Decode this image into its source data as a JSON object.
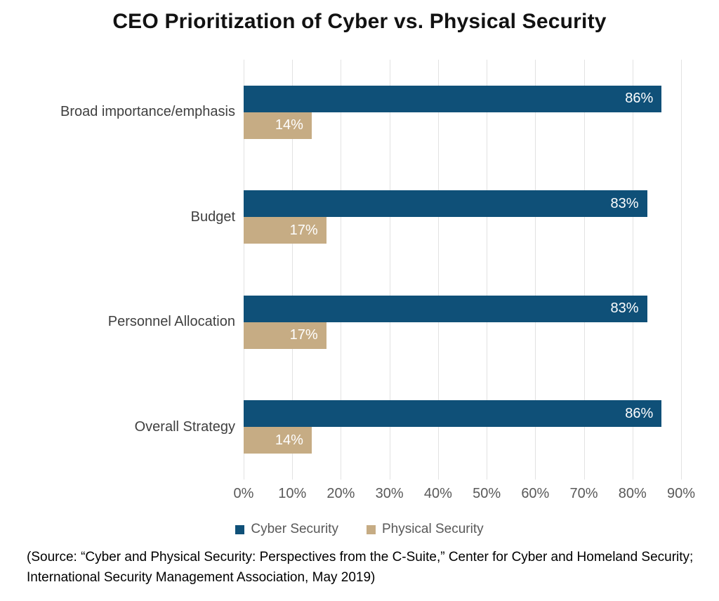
{
  "chart_data": {
    "type": "bar",
    "orientation": "horizontal",
    "title": "CEO Prioritization of Cyber vs. Physical Security",
    "categories": [
      "Broad importance/emphasis",
      "Budget",
      "Personnel Allocation",
      "Overall Strategy"
    ],
    "series": [
      {
        "name": "Cyber Security",
        "color": "#0F5078",
        "values": [
          86,
          83,
          83,
          86
        ]
      },
      {
        "name": "Physical Security",
        "color": "#C6AC84",
        "values": [
          14,
          17,
          17,
          14
        ]
      }
    ],
    "data_labels": [
      [
        "86%",
        "83%",
        "83%",
        "86%"
      ],
      [
        "14%",
        "17%",
        "17%",
        "14%"
      ]
    ],
    "xlim": [
      0,
      90
    ],
    "x_tick_values": [
      0,
      10,
      20,
      30,
      40,
      50,
      60,
      70,
      80,
      90
    ],
    "x_tick_labels": [
      "0%",
      "10%",
      "20%",
      "30%",
      "40%",
      "50%",
      "60%",
      "70%",
      "80%",
      "90%"
    ],
    "grid": true,
    "legend_position": "bottom",
    "colors": {
      "cyber_bar": "#0F5078",
      "physical_bar": "#C6AC84",
      "value_label_text": "#FFFFFF",
      "category_label_text": "#3F3F3F",
      "tick_label_text": "#595959",
      "legend_text": "#595959",
      "gridline": "#E2E2E2",
      "title_text": "#121212",
      "background": "#FFFFFF"
    }
  },
  "source_note": "(Source: “Cyber and Physical Security: Perspectives from the C-Suite,” Center for Cyber and Homeland Security; International Security Management Association, May 2019)"
}
